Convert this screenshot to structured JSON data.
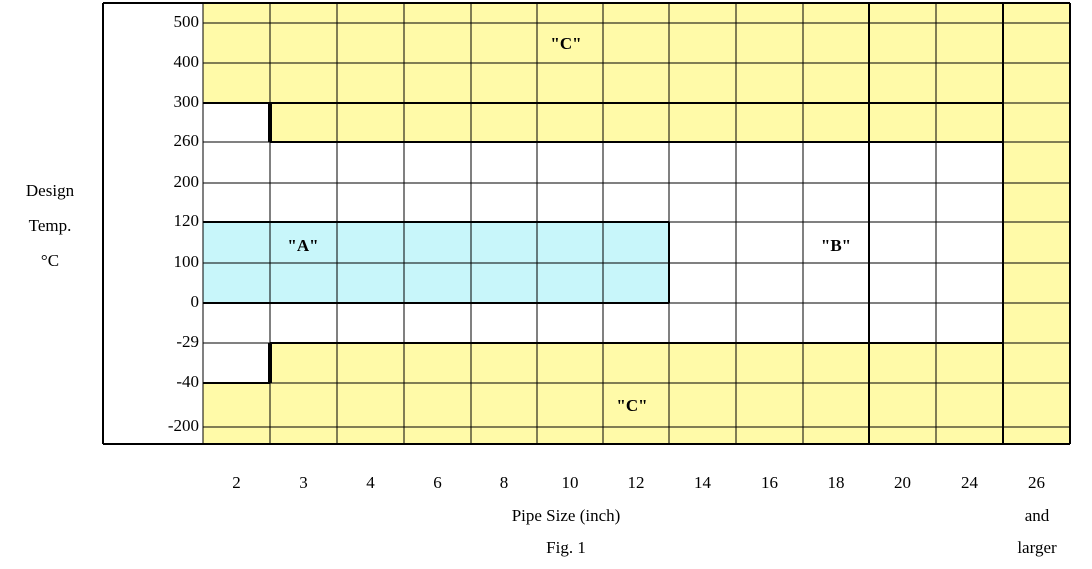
{
  "y_axis": {
    "title": [
      "Design",
      "Temp.",
      "°C"
    ],
    "labels": [
      "500",
      "400",
      "300",
      "260",
      "200",
      "120",
      "100",
      "0",
      "-29",
      "-40",
      "-200"
    ]
  },
  "x_axis": {
    "title": "Pipe Size (inch)",
    "labels": [
      "2",
      "3",
      "4",
      "6",
      "8",
      "10",
      "12",
      "14",
      "16",
      "18",
      "20",
      "24",
      "26"
    ],
    "last_label_note": [
      "and",
      "larger"
    ]
  },
  "regions": {
    "top": "\"C\"",
    "a": "\"A\"",
    "b": "\"B\"",
    "bottom": "\"C\""
  },
  "caption": "Fig. 1"
}
